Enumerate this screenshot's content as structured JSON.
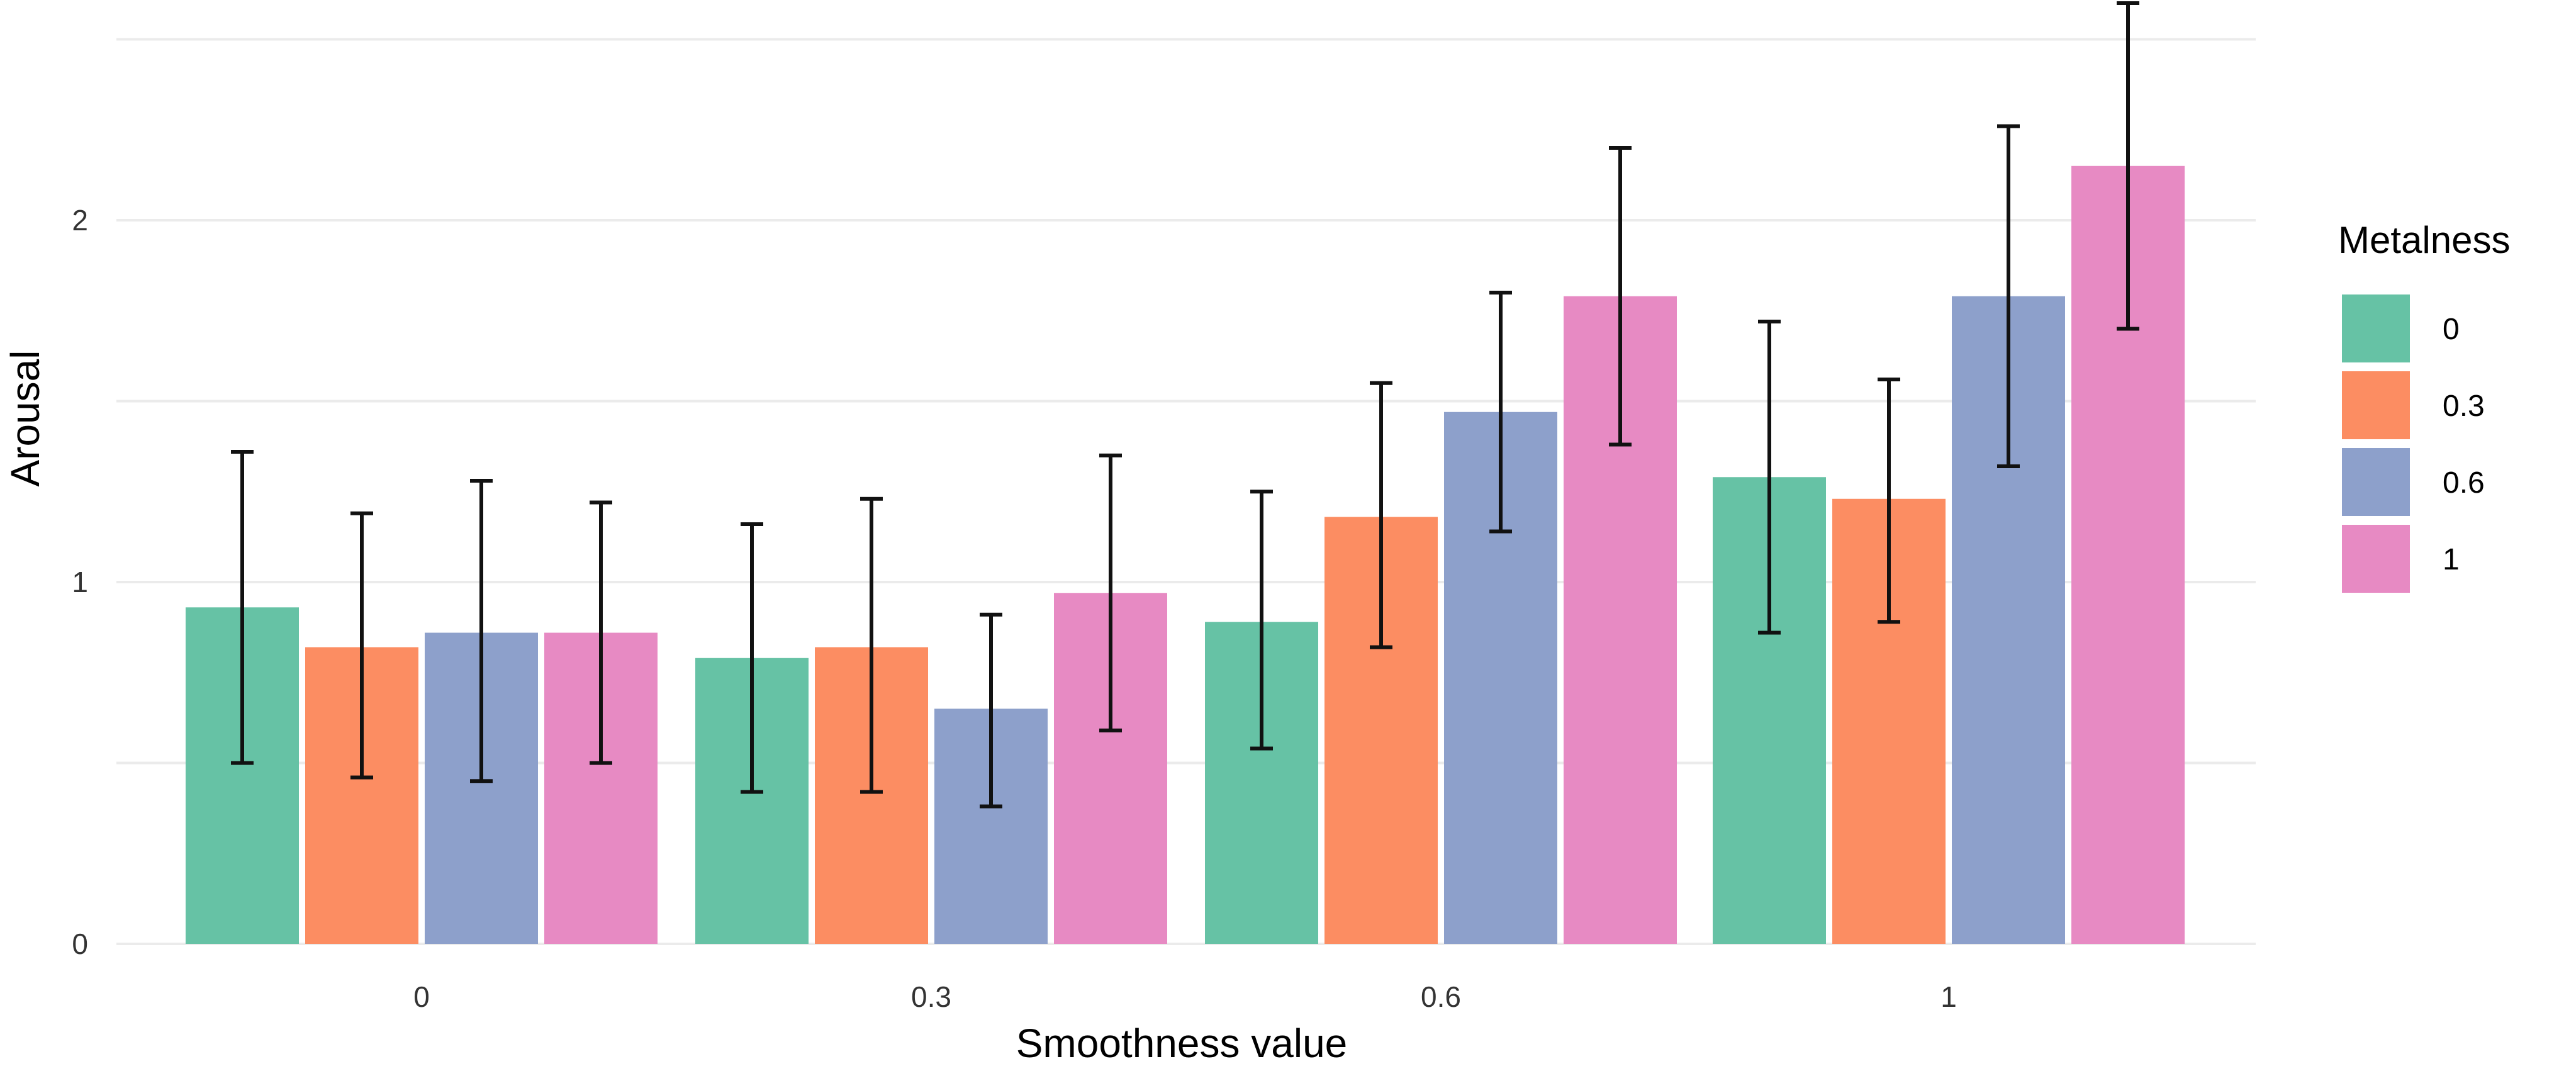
{
  "chart_data": {
    "type": "bar",
    "xlabel": "Smoothness value",
    "ylabel": "Arousal",
    "categories": [
      "0",
      "0.3",
      "0.6",
      "1"
    ],
    "ylim": [
      0,
      2.6
    ],
    "yticks": [
      0,
      1,
      2
    ],
    "ytick_labels": [
      "0",
      "1",
      "2"
    ],
    "legend": {
      "title": "Metalness",
      "position": "right"
    },
    "series": [
      {
        "name": "0",
        "color": "#66c2a5",
        "values": [
          0.93,
          0.79,
          0.89,
          1.29
        ],
        "err_low": [
          0.5,
          0.42,
          0.54,
          0.86
        ],
        "err_high": [
          1.36,
          1.16,
          1.25,
          1.72
        ]
      },
      {
        "name": "0.3",
        "color": "#fc8d62",
        "values": [
          0.82,
          0.82,
          1.18,
          1.23
        ],
        "err_low": [
          0.46,
          0.42,
          0.82,
          0.89
        ],
        "err_high": [
          1.19,
          1.23,
          1.55,
          1.56
        ]
      },
      {
        "name": "0.6",
        "color": "#8da0cb",
        "values": [
          0.86,
          0.65,
          1.47,
          1.79
        ],
        "err_low": [
          0.45,
          0.38,
          1.14,
          1.32
        ],
        "err_high": [
          1.28,
          0.91,
          1.8,
          2.26
        ]
      },
      {
        "name": "1",
        "color": "#e78ac3",
        "values": [
          0.86,
          0.97,
          1.79,
          2.15
        ],
        "err_low": [
          0.5,
          0.59,
          1.38,
          1.7
        ],
        "err_high": [
          1.22,
          1.35,
          2.2,
          2.6
        ]
      }
    ]
  }
}
